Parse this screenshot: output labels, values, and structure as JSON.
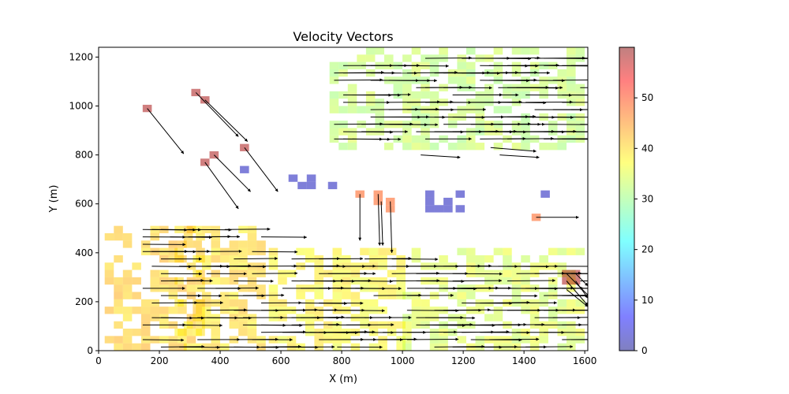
{
  "chart_data": {
    "type": "quiver",
    "title": "Velocity Vectors",
    "xlabel": "X (m)",
    "ylabel": "Y (m)",
    "xlim": [
      0,
      1610
    ],
    "ylim": [
      0,
      1240
    ],
    "xticks": [
      0,
      200,
      400,
      600,
      800,
      1000,
      1200,
      1400,
      1600
    ],
    "yticks": [
      0,
      200,
      400,
      600,
      800,
      1000,
      1200
    ],
    "grid": false,
    "colorbar": {
      "range": [
        0,
        60
      ],
      "ticks": [
        0,
        10,
        20,
        30,
        40,
        50
      ],
      "colormap": "jet",
      "alpha": 0.5
    },
    "cell_size_m": 30,
    "clusters": [
      {
        "note": "red cells",
        "value": 58,
        "cells": [
          [
            160,
            990
          ],
          [
            320,
            1055
          ],
          [
            350,
            1025
          ],
          [
            480,
            830
          ],
          [
            380,
            800
          ],
          [
            350,
            770
          ],
          [
            1540,
            315
          ],
          [
            1570,
            315
          ],
          [
            1540,
            285
          ],
          [
            1570,
            285
          ]
        ]
      },
      {
        "note": "blue cells",
        "value": 3,
        "cells": [
          [
            480,
            740
          ],
          [
            640,
            705
          ],
          [
            700,
            705
          ],
          [
            670,
            675
          ],
          [
            700,
            675
          ],
          [
            770,
            675
          ],
          [
            1090,
            640
          ],
          [
            1190,
            640
          ],
          [
            1470,
            640
          ],
          [
            1090,
            610
          ],
          [
            1150,
            610
          ],
          [
            1090,
            580
          ],
          [
            1120,
            580
          ],
          [
            1150,
            580
          ],
          [
            1190,
            580
          ]
        ]
      },
      {
        "note": "orange cells",
        "value": 48,
        "cells": [
          [
            860,
            640
          ],
          [
            920,
            640
          ],
          [
            920,
            610
          ],
          [
            960,
            610
          ],
          [
            960,
            580
          ],
          [
            1440,
            545
          ]
        ]
      },
      {
        "note": "yellow region bottom-left",
        "value": 41,
        "region": [
          [
            20,
            0
          ],
          [
            340,
            520
          ]
        ]
      },
      {
        "note": "yellow region bottom-middle",
        "value": 40,
        "region": [
          [
            250,
            0
          ],
          [
            560,
            520
          ]
        ]
      },
      {
        "note": "yellow-green region bottom",
        "value": 38,
        "region": [
          [
            560,
            0
          ],
          [
            1000,
            420
          ]
        ]
      },
      {
        "note": "green-yellow region bottom-right",
        "value": 35,
        "region": [
          [
            1000,
            0
          ],
          [
            1610,
            410
          ]
        ]
      },
      {
        "note": "green-yellow region top-right",
        "value": 33,
        "region": [
          [
            760,
            820
          ],
          [
            1610,
            1240
          ]
        ]
      }
    ],
    "vectors": [
      {
        "x0": 160,
        "y0": 990,
        "dx": 120,
        "dy": -185
      },
      {
        "x0": 320,
        "y0": 1055,
        "dx": 140,
        "dy": -180
      },
      {
        "x0": 350,
        "y0": 1025,
        "dx": 140,
        "dy": -170
      },
      {
        "x0": 380,
        "y0": 800,
        "dx": 120,
        "dy": -150
      },
      {
        "x0": 350,
        "y0": 770,
        "dx": 110,
        "dy": -190
      },
      {
        "x0": 480,
        "y0": 830,
        "dx": 110,
        "dy": -180
      },
      {
        "x0": 860,
        "y0": 640,
        "dx": 0,
        "dy": -190
      },
      {
        "x0": 920,
        "y0": 640,
        "dx": 5,
        "dy": -210
      },
      {
        "x0": 930,
        "y0": 610,
        "dx": 5,
        "dy": -180
      },
      {
        "x0": 960,
        "y0": 610,
        "dx": 5,
        "dy": -210
      },
      {
        "x0": 1440,
        "y0": 545,
        "dx": 140,
        "dy": 0
      },
      {
        "x0": 1060,
        "y0": 800,
        "dx": 130,
        "dy": -10
      },
      {
        "x0": 1290,
        "y0": 830,
        "dx": 150,
        "dy": -15
      },
      {
        "x0": 1320,
        "y0": 800,
        "dx": 130,
        "dy": -10
      },
      {
        "x0": 1540,
        "y0": 315,
        "dx": 80,
        "dy": -100
      },
      {
        "x0": 1540,
        "y0": 285,
        "dx": 70,
        "dy": -100
      },
      {
        "x0": 1570,
        "y0": 315,
        "dx": 40,
        "dy": -50
      },
      {
        "x0": 1570,
        "y0": 285,
        "dx": 40,
        "dy": -70
      },
      {
        "x0": 1540,
        "y0": 250,
        "dx": 70,
        "dy": -70
      }
    ],
    "vector_fields": [
      {
        "region": [
          [
            130,
            0
          ],
          [
            560,
            510
          ]
        ],
        "spacing_x": 30,
        "spacing_y": 30,
        "density": 0.62,
        "dx": 140,
        "dy": 0
      },
      {
        "region": [
          [
            560,
            0
          ],
          [
            1000,
            400
          ]
        ],
        "spacing_x": 30,
        "spacing_y": 30,
        "density": 0.65,
        "dx": 150,
        "dy": 0
      },
      {
        "region": [
          [
            1000,
            0
          ],
          [
            1610,
            400
          ]
        ],
        "spacing_x": 30,
        "spacing_y": 30,
        "density": 0.7,
        "dx": 160,
        "dy": 0
      },
      {
        "region": [
          [
            760,
            850
          ],
          [
            1610,
            1200
          ]
        ],
        "spacing_x": 30,
        "spacing_y": 30,
        "density": 0.65,
        "dx": 160,
        "dy": 0
      }
    ]
  }
}
